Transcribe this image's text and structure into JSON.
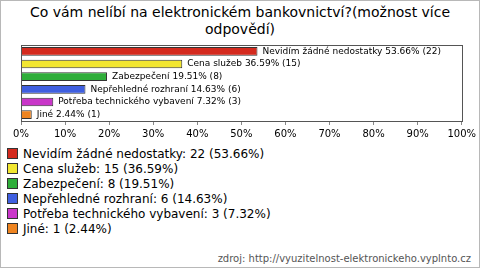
{
  "chart_data": {
    "type": "bar",
    "orientation": "horizontal",
    "title": "Co vám nelíbí na elektronickém bankovnictví?(možnost více odpovědí)",
    "categories": [
      "Nevidím žádné nedostatky",
      "Cena služeb",
      "Zabezpečení",
      "Nepřehledné rozhraní",
      "Potřeba technického vybavení",
      "Jiné"
    ],
    "values": [
      53.66,
      36.59,
      19.51,
      14.63,
      7.32,
      2.44
    ],
    "value_labels": [
      "Nevidím žádné nedostatky 53.66% (22)",
      "Cena služeb 36.59% (15)",
      "Zabezpečení 19.51% (8)",
      "Nepřehledné rozhraní 14.63% (6)",
      "Potřeba technického vybavení 7.32% (3)",
      "Jiné 2.44% (1)"
    ],
    "counts": [
      22,
      15,
      8,
      6,
      3,
      1
    ],
    "legend_labels": [
      "Nevidím žádné nedostatky: 22 (53.66%)",
      "Cena služeb: 15 (36.59%)",
      "Zabezpečení: 8 (19.51%)",
      "Nepřehledné rozhraní: 6 (14.63%)",
      "Potřeba technického vybavení: 3 (7.32%)",
      "Jiné: 1 (2.44%)"
    ],
    "colors": [
      "#d42a1e",
      "#f2e630",
      "#2fae3a",
      "#3f5fe0",
      "#c936c9",
      "#ee8420"
    ],
    "xlim": [
      0,
      100
    ],
    "xticks": [
      {
        "value": 0,
        "label": "0%"
      },
      {
        "value": 10,
        "label": "10%"
      },
      {
        "value": 20,
        "label": "20%"
      },
      {
        "value": 30,
        "label": "30%"
      },
      {
        "value": 40,
        "label": "40%"
      },
      {
        "value": 50,
        "label": "50%"
      },
      {
        "value": 60,
        "label": "60%"
      },
      {
        "value": 70,
        "label": "70%"
      },
      {
        "value": 80,
        "label": "80%"
      },
      {
        "value": 90,
        "label": "90%"
      },
      {
        "value": 100,
        "label": "100%"
      }
    ],
    "data_labels": true,
    "tick_labels": "x",
    "grid": false,
    "legend": "bottom",
    "source": "zdroj: http://vyuzitelnost-elektronickeho.vyplnto.cz"
  }
}
